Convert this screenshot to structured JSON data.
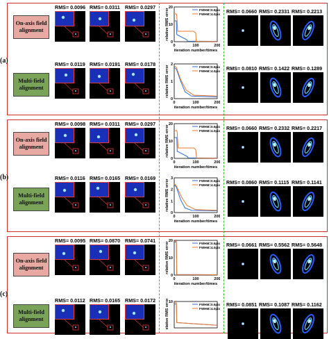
{
  "panels": [
    {
      "label": "(a)"
    },
    {
      "label": "(b)"
    },
    {
      "label": "(c)"
    }
  ],
  "row_labels": {
    "on_axis": "On-axis field alignment",
    "multi": "Multi-field alignment"
  },
  "rms_left": [
    [
      "RMS= 0.0096",
      "RMS= 0.0311",
      "RMS= 0.0297"
    ],
    [
      "RMS= 0.0119",
      "RMS= 0.0191",
      "RMS= 0.0178"
    ],
    [
      "RMS= 0.0098",
      "RMS= 0.0311",
      "RMS= 0.0297"
    ],
    [
      "RMS= 0.0116",
      "RMS= 0.0165",
      "RMS= 0.0169"
    ],
    [
      "RMS= 0.0095",
      "RMS= 0.0870",
      "RMS= 0.0741"
    ],
    [
      "RMS= 0.0112",
      "RMS= 0.0165",
      "RMS= 0.0172"
    ]
  ],
  "rms_right": [
    [
      "RMS= 0.0660",
      "RMS= 0.2331",
      "RMS= 0.2213"
    ],
    [
      "RMS= 0.0810",
      "RMS= 0.1422",
      "RMS= 0.1289"
    ],
    [
      "RMS= 0.0660",
      "RMS= 0.2332",
      "RMS= 0.2217"
    ],
    [
      "RMS= 0.0860",
      "RMS= 0.1115",
      "RMS= 0.1141"
    ],
    [
      "RMS= 0.0661",
      "RMS= 0.5562",
      "RMS= 0.5648"
    ],
    [
      "RMS= 0.0851",
      "RMS= 0.1087",
      "RMS= 0.1162"
    ]
  ],
  "chart_data": [
    {
      "type": "line",
      "panel": "a",
      "row": "on-axis",
      "xlabel": "iteration number/times",
      "ylabel": "relative RMS error",
      "xlim": [
        0,
        200
      ],
      "ylim": [
        0,
        20
      ],
      "xticks": [
        0,
        100,
        200
      ],
      "yticks": [
        0,
        10,
        20
      ],
      "series": [
        {
          "name": "FWHM=0.5pixels",
          "color": "#2f6fd6",
          "x": [
            0,
            10,
            12,
            14,
            60,
            62,
            200
          ],
          "y": [
            12,
            12,
            4,
            4,
            1,
            0.3,
            0.2
          ]
        },
        {
          "name": "FWHM=4.0pixels",
          "color": "#e8772e",
          "x": [
            0,
            10,
            12,
            16,
            90,
            100,
            102,
            200
          ],
          "y": [
            16,
            16,
            15,
            6,
            6,
            5,
            0.2,
            0.1
          ]
        }
      ]
    },
    {
      "type": "line",
      "panel": "a",
      "row": "multi",
      "xlabel": "iteration number/times",
      "ylabel": "relative RMS error",
      "xlim": [
        0,
        200
      ],
      "ylim": [
        0,
        2
      ],
      "xticks": [
        0,
        100,
        200
      ],
      "yticks": [
        0,
        1,
        2
      ],
      "series": [
        {
          "name": "FWHM=0.5pixels",
          "color": "#2f6fd6",
          "x": [
            0,
            10,
            30,
            50,
            80,
            200
          ],
          "y": [
            1.8,
            1.7,
            1.0,
            0.4,
            0.15,
            0.1
          ]
        },
        {
          "name": "FWHM=4.0pixels",
          "color": "#e8772e",
          "x": [
            0,
            10,
            30,
            55,
            90,
            200
          ],
          "y": [
            1.9,
            1.8,
            1.1,
            0.5,
            0.2,
            0.15
          ]
        }
      ]
    },
    {
      "type": "line",
      "panel": "b",
      "row": "on-axis",
      "xlabel": "iteration number/times",
      "ylabel": "relative RMS error",
      "xlim": [
        0,
        200
      ],
      "ylim": [
        0,
        20
      ],
      "xticks": [
        0,
        100,
        200
      ],
      "yticks": [
        0,
        10,
        20
      ],
      "series": [
        {
          "name": "FWHM=0.5pixels",
          "color": "#2f6fd6",
          "x": [
            0,
            12,
            14,
            16,
            62,
            64,
            200
          ],
          "y": [
            12,
            12,
            4,
            4,
            1,
            0.3,
            0.2
          ]
        },
        {
          "name": "FWHM=4.0pixels",
          "color": "#e8772e",
          "x": [
            0,
            12,
            14,
            18,
            92,
            100,
            104,
            200
          ],
          "y": [
            16,
            16,
            15,
            6,
            6,
            5,
            0.2,
            0.1
          ]
        }
      ]
    },
    {
      "type": "line",
      "panel": "b",
      "row": "multi",
      "xlabel": "iteration number/times",
      "ylabel": "relative RMS error",
      "xlim": [
        0,
        200
      ],
      "ylim": [
        0,
        3
      ],
      "xticks": [
        0,
        100,
        200
      ],
      "yticks": [
        0,
        1,
        2,
        3
      ],
      "series": [
        {
          "name": "FWHM=0.5pixels",
          "color": "#2f6fd6",
          "x": [
            0,
            10,
            30,
            50,
            80,
            200
          ],
          "y": [
            2.4,
            2.2,
            1.1,
            0.4,
            0.2,
            0.15
          ]
        },
        {
          "name": "FWHM=4.0pixels",
          "color": "#e8772e",
          "x": [
            0,
            10,
            35,
            60,
            100,
            200
          ],
          "y": [
            2.5,
            2.3,
            1.3,
            0.6,
            0.25,
            0.2
          ]
        }
      ]
    },
    {
      "type": "line",
      "panel": "c",
      "row": "on-axis",
      "xlabel": "iteration number/times",
      "ylabel": "relative RMS error",
      "xlim": [
        0,
        200
      ],
      "ylim": [
        0,
        20
      ],
      "xticks": [
        0,
        100,
        200
      ],
      "yticks": [
        0,
        10,
        20
      ],
      "series": [
        {
          "name": "FWHM=0.5pixels",
          "color": "#2f6fd6",
          "x": [
            0,
            10,
            12,
            200
          ],
          "y": [
            19,
            19,
            0.3,
            0.2
          ]
        },
        {
          "name": "FWHM=4.0pixels",
          "color": "#e8772e",
          "x": [
            0,
            10,
            12,
            200
          ],
          "y": [
            19.5,
            19.5,
            0.3,
            0.2
          ]
        }
      ]
    },
    {
      "type": "line",
      "panel": "c",
      "row": "multi",
      "xlabel": "",
      "ylabel": "relative RMS error",
      "xlim": [
        0,
        200
      ],
      "ylim": [
        0,
        10
      ],
      "xticks": [],
      "yticks": [
        10
      ],
      "series": [
        {
          "name": "FWHM=0.5pixels",
          "color": "#2f6fd6",
          "x": [
            0,
            10,
            12,
            200
          ],
          "y": [
            9,
            9,
            2,
            1
          ]
        },
        {
          "name": "FWHM=4.0pixels",
          "color": "#e8772e",
          "x": [
            0,
            10,
            12,
            200
          ],
          "y": [
            9.5,
            9.5,
            2,
            1
          ]
        }
      ]
    }
  ]
}
